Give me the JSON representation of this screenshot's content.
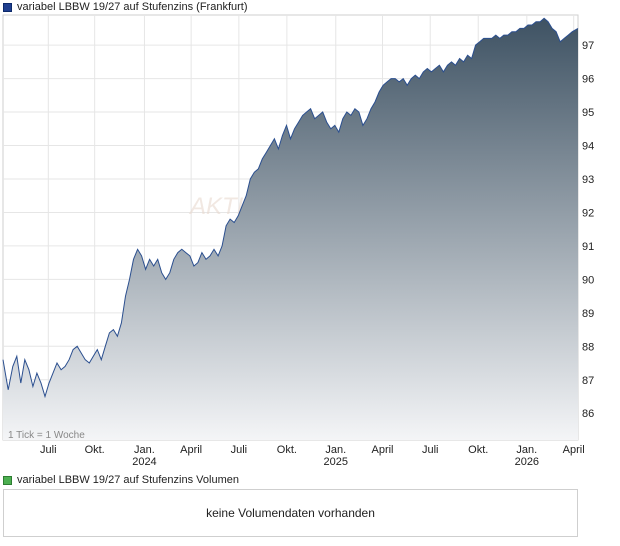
{
  "legend": {
    "price_label": "variabel LBBW 19/27 auf Stufenzins (Frankfurt)",
    "price_color": "#1f3f8f",
    "volume_label": "variabel LBBW 19/27 auf Stufenzins Volumen",
    "volume_color": "#4caf50"
  },
  "volume": {
    "message": "keine Volumendaten vorhanden"
  },
  "tick_note": "1 Tick = 1 Woche",
  "watermark": "AKTIEN",
  "chart_data": {
    "type": "area",
    "title": "variabel LBBW 19/27 auf Stufenzins (Frankfurt)",
    "xlabel": "",
    "ylabel": "",
    "ylim": [
      85.2,
      97.9
    ],
    "yticks": [
      86,
      87,
      88,
      89,
      90,
      91,
      92,
      93,
      94,
      95,
      96,
      97
    ],
    "x_ticks": [
      {
        "label": "Juli",
        "year": "",
        "t": 0.0788
      },
      {
        "label": "Okt.",
        "year": "",
        "t": 0.1594
      },
      {
        "label": "Jan.",
        "year": "2024",
        "t": 0.246
      },
      {
        "label": "April",
        "year": "",
        "t": 0.3272
      },
      {
        "label": "Juli",
        "year": "",
        "t": 0.4102
      },
      {
        "label": "Okt.",
        "year": "",
        "t": 0.4937
      },
      {
        "label": "Jan.",
        "year": "2025",
        "t": 0.5787
      },
      {
        "label": "April",
        "year": "",
        "t": 0.66
      },
      {
        "label": "Juli",
        "year": "",
        "t": 0.743
      },
      {
        "label": "Okt.",
        "year": "",
        "t": 0.8265
      },
      {
        "label": "Jan.",
        "year": "2026",
        "t": 0.911
      },
      {
        "label": "April",
        "year": "",
        "t": 0.9925
      }
    ],
    "grid": true,
    "line_color": "#2b4f8f",
    "fill_top": "#3e5263",
    "fill_bottom": "#f4f5f7",
    "series": [
      {
        "points": [
          [
            0.0,
            87.6
          ],
          [
            0.009,
            86.7
          ],
          [
            0.017,
            87.4
          ],
          [
            0.024,
            87.7
          ],
          [
            0.031,
            86.9
          ],
          [
            0.038,
            87.6
          ],
          [
            0.045,
            87.3
          ],
          [
            0.052,
            86.8
          ],
          [
            0.059,
            87.2
          ],
          [
            0.066,
            86.9
          ],
          [
            0.073,
            86.5
          ],
          [
            0.08,
            86.9
          ],
          [
            0.087,
            87.2
          ],
          [
            0.094,
            87.5
          ],
          [
            0.101,
            87.3
          ],
          [
            0.108,
            87.4
          ],
          [
            0.115,
            87.6
          ],
          [
            0.122,
            87.9
          ],
          [
            0.129,
            88.0
          ],
          [
            0.136,
            87.8
          ],
          [
            0.143,
            87.6
          ],
          [
            0.15,
            87.5
          ],
          [
            0.157,
            87.7
          ],
          [
            0.164,
            87.9
          ],
          [
            0.171,
            87.6
          ],
          [
            0.178,
            88.0
          ],
          [
            0.185,
            88.4
          ],
          [
            0.192,
            88.5
          ],
          [
            0.199,
            88.3
          ],
          [
            0.206,
            88.7
          ],
          [
            0.213,
            89.5
          ],
          [
            0.22,
            90.0
          ],
          [
            0.227,
            90.6
          ],
          [
            0.234,
            90.9
          ],
          [
            0.241,
            90.7
          ],
          [
            0.248,
            90.3
          ],
          [
            0.255,
            90.6
          ],
          [
            0.262,
            90.4
          ],
          [
            0.269,
            90.6
          ],
          [
            0.276,
            90.2
          ],
          [
            0.283,
            90.0
          ],
          [
            0.29,
            90.2
          ],
          [
            0.297,
            90.6
          ],
          [
            0.304,
            90.8
          ],
          [
            0.311,
            90.9
          ],
          [
            0.318,
            90.8
          ],
          [
            0.325,
            90.7
          ],
          [
            0.332,
            90.4
          ],
          [
            0.339,
            90.5
          ],
          [
            0.346,
            90.8
          ],
          [
            0.353,
            90.6
          ],
          [
            0.36,
            90.7
          ],
          [
            0.367,
            90.9
          ],
          [
            0.374,
            90.7
          ],
          [
            0.381,
            91.0
          ],
          [
            0.388,
            91.6
          ],
          [
            0.395,
            91.8
          ],
          [
            0.402,
            91.7
          ],
          [
            0.409,
            91.9
          ],
          [
            0.416,
            92.2
          ],
          [
            0.423,
            92.5
          ],
          [
            0.43,
            93.0
          ],
          [
            0.437,
            93.2
          ],
          [
            0.444,
            93.3
          ],
          [
            0.451,
            93.6
          ],
          [
            0.458,
            93.8
          ],
          [
            0.465,
            94.0
          ],
          [
            0.472,
            94.2
          ],
          [
            0.479,
            93.9
          ],
          [
            0.486,
            94.3
          ],
          [
            0.493,
            94.6
          ],
          [
            0.5,
            94.2
          ],
          [
            0.507,
            94.5
          ],
          [
            0.514,
            94.7
          ],
          [
            0.521,
            94.9
          ],
          [
            0.528,
            95.0
          ],
          [
            0.535,
            95.1
          ],
          [
            0.542,
            94.8
          ],
          [
            0.549,
            94.9
          ],
          [
            0.556,
            95.0
          ],
          [
            0.563,
            94.7
          ],
          [
            0.57,
            94.5
          ],
          [
            0.577,
            94.6
          ],
          [
            0.584,
            94.4
          ],
          [
            0.591,
            94.8
          ],
          [
            0.598,
            95.0
          ],
          [
            0.605,
            94.9
          ],
          [
            0.612,
            95.1
          ],
          [
            0.619,
            95.0
          ],
          [
            0.626,
            94.6
          ],
          [
            0.633,
            94.8
          ],
          [
            0.64,
            95.1
          ],
          [
            0.647,
            95.3
          ],
          [
            0.654,
            95.6
          ],
          [
            0.661,
            95.8
          ],
          [
            0.668,
            95.9
          ],
          [
            0.675,
            96.0
          ],
          [
            0.682,
            96.0
          ],
          [
            0.689,
            95.9
          ],
          [
            0.696,
            96.0
          ],
          [
            0.703,
            95.8
          ],
          [
            0.71,
            96.0
          ],
          [
            0.717,
            96.1
          ],
          [
            0.724,
            96.0
          ],
          [
            0.731,
            96.2
          ],
          [
            0.738,
            96.3
          ],
          [
            0.745,
            96.2
          ],
          [
            0.752,
            96.3
          ],
          [
            0.759,
            96.4
          ],
          [
            0.766,
            96.2
          ],
          [
            0.773,
            96.4
          ],
          [
            0.78,
            96.5
          ],
          [
            0.787,
            96.4
          ],
          [
            0.794,
            96.6
          ],
          [
            0.801,
            96.5
          ],
          [
            0.808,
            96.7
          ],
          [
            0.815,
            96.6
          ],
          [
            0.822,
            97.0
          ],
          [
            0.829,
            97.1
          ],
          [
            0.836,
            97.2
          ],
          [
            0.843,
            97.2
          ],
          [
            0.85,
            97.2
          ],
          [
            0.857,
            97.3
          ],
          [
            0.864,
            97.2
          ],
          [
            0.871,
            97.3
          ],
          [
            0.878,
            97.3
          ],
          [
            0.885,
            97.4
          ],
          [
            0.892,
            97.4
          ],
          [
            0.899,
            97.5
          ],
          [
            0.906,
            97.5
          ],
          [
            0.913,
            97.6
          ],
          [
            0.92,
            97.6
          ],
          [
            0.927,
            97.7
          ],
          [
            0.934,
            97.7
          ],
          [
            0.941,
            97.8
          ],
          [
            0.948,
            97.7
          ],
          [
            0.955,
            97.5
          ],
          [
            0.962,
            97.4
          ],
          [
            0.969,
            97.1
          ],
          [
            0.976,
            97.2
          ],
          [
            0.983,
            97.3
          ],
          [
            0.99,
            97.4
          ],
          [
            1.0,
            97.5
          ]
        ]
      }
    ]
  }
}
